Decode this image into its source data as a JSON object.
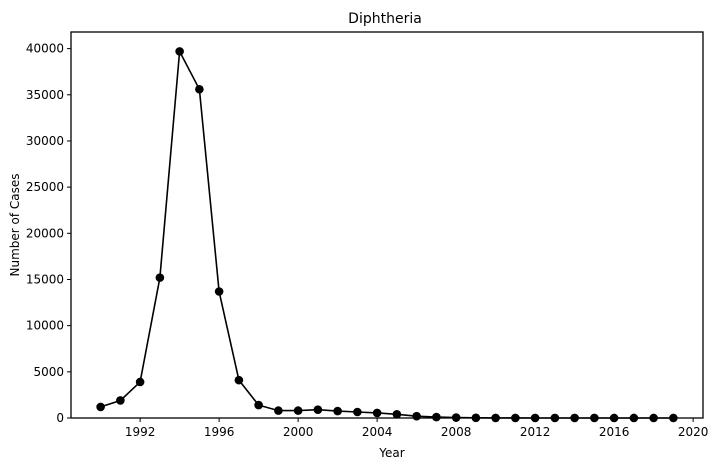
{
  "chart_data": {
    "type": "line",
    "title": "Diphtheria",
    "xlabel": "Year",
    "ylabel": "Number of Cases",
    "xlim": [
      1988.5,
      2020.5
    ],
    "ylim": [
      0,
      41800
    ],
    "xticks": [
      1992,
      1996,
      2000,
      2004,
      2008,
      2012,
      2016,
      2020
    ],
    "yticks": [
      0,
      5000,
      10000,
      15000,
      20000,
      25000,
      30000,
      35000,
      40000
    ],
    "grid": false,
    "color": "#000000",
    "marker": "circle",
    "series": [
      {
        "x": [
          1990,
          1991,
          1992,
          1993,
          1994,
          1995,
          1996,
          1997,
          1998,
          1999,
          2000,
          2001,
          2002,
          2003,
          2004,
          2005,
          2006,
          2007,
          2008,
          2009,
          2010,
          2011,
          2012,
          2013,
          2014,
          2015,
          2016,
          2017,
          2018,
          2019
        ],
        "y": [
          1200,
          1900,
          3900,
          15200,
          39700,
          35600,
          13700,
          4100,
          1400,
          800,
          800,
          900,
          750,
          650,
          550,
          400,
          200,
          100,
          50,
          20,
          10,
          10,
          5,
          5,
          3,
          3,
          2,
          2,
          2,
          2
        ]
      }
    ]
  }
}
